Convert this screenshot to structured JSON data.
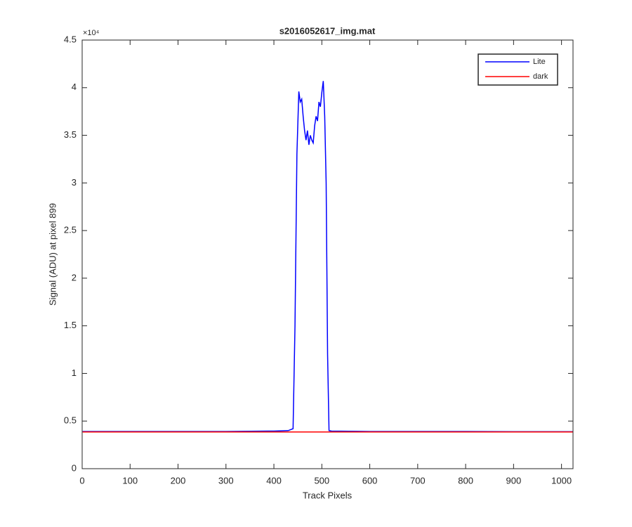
{
  "chart_data": {
    "type": "line",
    "title": "s2016052617_img.mat",
    "x_label": "Track Pixels",
    "y_label": "Signal (ADU) at pixel 899",
    "y_exponent_label": "×10⁴",
    "xlim": [
      0,
      1024
    ],
    "xticks": [
      0,
      100,
      200,
      300,
      400,
      500,
      600,
      700,
      800,
      900,
      1000
    ],
    "ylim": [
      0,
      45000
    ],
    "yticks": [
      {
        "value": 0,
        "label": "0"
      },
      {
        "value": 5000,
        "label": "0.5"
      },
      {
        "value": 10000,
        "label": "1"
      },
      {
        "value": 15000,
        "label": "1.5"
      },
      {
        "value": 20000,
        "label": "2"
      },
      {
        "value": 25000,
        "label": "2.5"
      },
      {
        "value": 30000,
        "label": "3"
      },
      {
        "value": 35000,
        "label": "3.5"
      },
      {
        "value": 40000,
        "label": "4"
      },
      {
        "value": 45000,
        "label": "4.5"
      }
    ],
    "legend": "upper right",
    "series": [
      {
        "name": "Lite",
        "color": "#0000ff",
        "x": [
          1,
          100,
          200,
          300,
          400,
          430,
          440,
          444,
          448,
          452,
          455,
          458,
          461,
          464,
          467,
          470,
          473,
          476,
          479,
          482,
          485,
          488,
          491,
          494,
          497,
          500,
          503,
          506,
          509,
          512,
          515,
          520,
          600,
          700,
          800,
          900,
          1024
        ],
        "values": [
          3900,
          3900,
          3900,
          3900,
          3950,
          4000,
          4200,
          15000,
          33000,
          39600,
          38500,
          38800,
          37000,
          35500,
          34500,
          35500,
          34000,
          35000,
          34500,
          34200,
          36000,
          37000,
          36500,
          38500,
          38000,
          39500,
          40700,
          37000,
          30000,
          12000,
          4000,
          3950,
          3900,
          3900,
          3900,
          3880,
          3880
        ]
      },
      {
        "name": "dark",
        "color": "#ff0000",
        "x": [
          1,
          1024
        ],
        "values": [
          3850,
          3850
        ]
      }
    ]
  }
}
